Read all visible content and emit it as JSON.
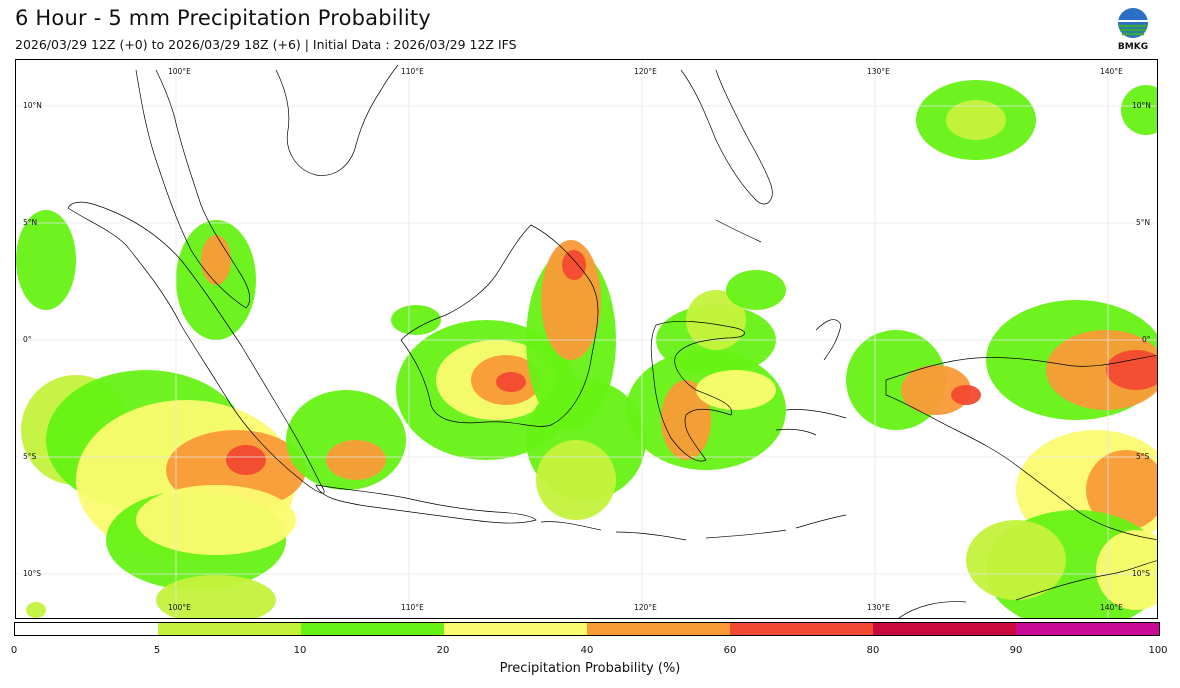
{
  "title": "6 Hour - 5 mm Precipitation Probability",
  "subtitle": "2026/03/29 12Z (+0) to 2026/03/29 18Z (+6) | Initial Data : 2026/03/29 12Z IFS",
  "logo": {
    "text": "BMKG",
    "icon": "bmkg-logo-icon"
  },
  "map": {
    "lon_labels": [
      "100°E",
      "110°E",
      "120°E",
      "130°E",
      "140°E"
    ],
    "lat_labels": [
      "10°N",
      "5°N",
      "0°",
      "5°S",
      "10°S"
    ],
    "lon_range": [
      93,
      142
    ],
    "lat_range": [
      12,
      -12
    ]
  },
  "colorbar": {
    "title": "Precipitation Probability (%)",
    "ticks": [
      "0",
      "5",
      "10",
      "20",
      "40",
      "60",
      "80",
      "90",
      "100"
    ],
    "colors": [
      "#ffffff",
      "#c4f23c",
      "#66f214",
      "#fbfb70",
      "#f99a38",
      "#f24a32",
      "#c80a3c",
      "#c80a96"
    ]
  }
}
